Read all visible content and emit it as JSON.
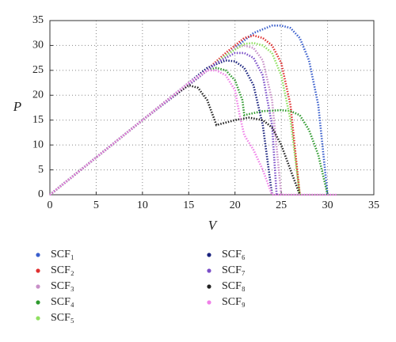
{
  "chart_data": {
    "type": "line",
    "x_label": "V",
    "y_label": "P",
    "xlim": [
      0,
      35
    ],
    "ylim": [
      0,
      35
    ],
    "xticks": [
      0,
      5,
      10,
      15,
      20,
      25,
      30,
      35
    ],
    "yticks": [
      0,
      5,
      10,
      15,
      20,
      25,
      30,
      35
    ],
    "grid": true,
    "series": [
      {
        "name": "SCF₁",
        "color": "#3a5fcd",
        "x": [
          0,
          10,
          16,
          20,
          22,
          24,
          25,
          26,
          27,
          28,
          29,
          30
        ],
        "values": [
          0,
          15,
          23.5,
          29.5,
          32.5,
          34,
          34,
          33.5,
          31.5,
          27,
          18,
          0
        ]
      },
      {
        "name": "SCF₂",
        "color": "#e03030",
        "x": [
          0,
          10,
          16,
          19,
          21,
          22,
          23,
          24,
          25,
          26,
          27
        ],
        "values": [
          0,
          15,
          23.5,
          28.5,
          31.5,
          32,
          31.5,
          30,
          26.5,
          18,
          0
        ]
      },
      {
        "name": "SCF₃",
        "color": "#c890c8",
        "x": [
          0,
          10,
          16,
          18,
          20,
          21,
          22,
          23,
          24,
          25
        ],
        "values": [
          0,
          15,
          23.5,
          26.5,
          29.5,
          30,
          29.5,
          27,
          19,
          0
        ]
      },
      {
        "name": "SCF₄",
        "color": "#2e9a2e",
        "x": [
          0,
          10,
          15,
          17,
          18,
          19,
          20,
          20.8,
          21,
          23,
          25,
          26,
          27,
          28,
          29,
          30
        ],
        "values": [
          0,
          15,
          22.5,
          25,
          25.5,
          25,
          23,
          19,
          16,
          16.8,
          17,
          16.8,
          16,
          13,
          8,
          0
        ]
      },
      {
        "name": "SCF₅",
        "color": "#90e060",
        "x": [
          0,
          10,
          16,
          19,
          21,
          22,
          23,
          24,
          25,
          26,
          27
        ],
        "values": [
          0,
          15,
          23.5,
          28,
          30.3,
          30.5,
          30,
          28.5,
          24,
          15,
          0
        ]
      },
      {
        "name": "SCF₆",
        "color": "#1a237e",
        "x": [
          0,
          10,
          15,
          17,
          19,
          20,
          21,
          22,
          23,
          24
        ],
        "values": [
          0,
          15,
          22.5,
          25.5,
          27,
          26.8,
          25.5,
          22,
          14,
          0
        ]
      },
      {
        "name": "SCF₇",
        "color": "#7b4fc8",
        "x": [
          0,
          10,
          16,
          18,
          20,
          21,
          22,
          23,
          24,
          24.5
        ],
        "values": [
          0,
          15,
          23.5,
          26.5,
          28.5,
          28.5,
          27.5,
          24,
          14,
          0
        ]
      },
      {
        "name": "SCF₈",
        "color": "#222222",
        "x": [
          0,
          10,
          13,
          15,
          16,
          17,
          17.5,
          18,
          20,
          21.5,
          23,
          24,
          25,
          26,
          27
        ],
        "values": [
          0,
          15,
          19.5,
          22,
          21.5,
          19,
          16.5,
          14,
          15,
          15.5,
          15,
          13.5,
          10,
          5,
          0
        ]
      },
      {
        "name": "SCF₉",
        "color": "#f080e8",
        "x": [
          0,
          10,
          15,
          17,
          18,
          19,
          20,
          20.5,
          21,
          22,
          23,
          24,
          31
        ],
        "values": [
          0,
          15,
          22.5,
          25,
          25,
          24,
          21,
          16,
          12,
          9,
          5,
          0,
          0
        ]
      }
    ]
  }
}
